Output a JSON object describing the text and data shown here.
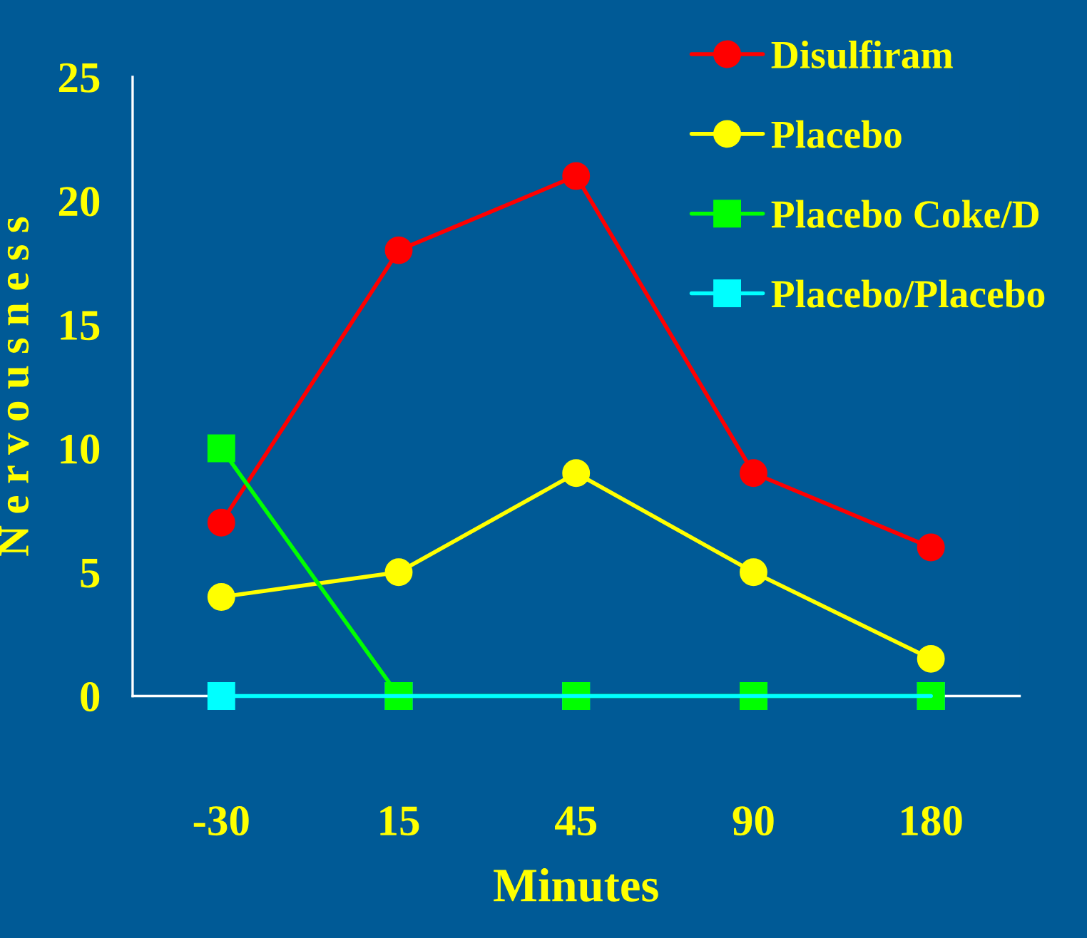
{
  "chart_data": {
    "type": "line",
    "xlabel": "Minutes",
    "ylabel": "N e r v o u s n e s s",
    "categories": [
      "-30",
      "15",
      "45",
      "90",
      "180"
    ],
    "series": [
      {
        "name": "Disulfiram",
        "color": "#ff0000",
        "marker": "circle",
        "values": [
          7,
          18,
          21,
          9,
          6
        ]
      },
      {
        "name": "Placebo",
        "color": "#ffff00",
        "marker": "circle",
        "values": [
          4,
          5,
          9,
          5,
          1.5
        ]
      },
      {
        "name": "Placebo Coke/D",
        "color": "#00ff00",
        "marker": "square",
        "values": [
          10,
          0,
          0,
          0,
          0
        ]
      },
      {
        "name": "Placebo/Placebo",
        "color": "#00ffff",
        "marker": "square",
        "values": [
          0,
          0,
          0,
          0,
          0
        ]
      }
    ],
    "ylim": [
      0,
      25
    ],
    "yticks": [
      0,
      5,
      10,
      15,
      20,
      25
    ],
    "grid": false,
    "legend": "top right",
    "line_style": "solid"
  }
}
